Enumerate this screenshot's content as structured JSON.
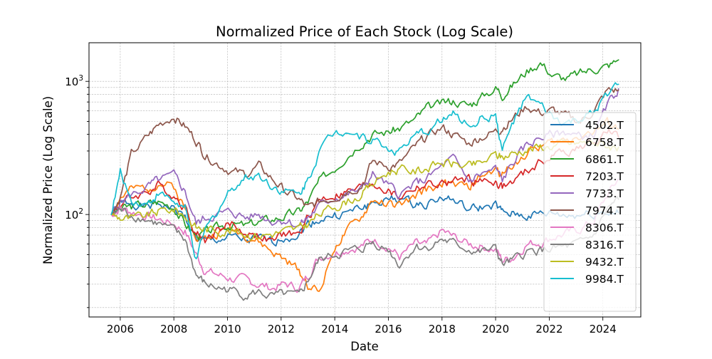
{
  "chart_data": {
    "type": "line",
    "title": "Normalized Price of Each Stock (Log Scale)",
    "xlabel": "Date",
    "ylabel": "Normalized Price (Log Scale)",
    "y_scale": "log",
    "ylim": [
      17,
      1950
    ],
    "xlim": [
      "2004-11-01",
      "2025-06-01"
    ],
    "x_ticks": [
      "2006",
      "2008",
      "2010",
      "2012",
      "2014",
      "2016",
      "2018",
      "2020",
      "2022",
      "2024"
    ],
    "y_ticks": [
      {
        "value": 100,
        "base": "10",
        "exp": "2"
      },
      {
        "value": 1000,
        "base": "10",
        "exp": "3"
      }
    ],
    "grid": true,
    "legend_position": "right",
    "x": [
      "2005-09",
      "2006-01",
      "2006-06",
      "2007-01",
      "2007-06",
      "2008-01",
      "2008-06",
      "2008-11",
      "2009-03",
      "2009-09",
      "2010-03",
      "2010-09",
      "2011-03",
      "2011-09",
      "2012-03",
      "2012-09",
      "2013-01",
      "2013-06",
      "2014-01",
      "2014-06",
      "2015-01",
      "2015-06",
      "2016-01",
      "2016-06",
      "2017-01",
      "2017-06",
      "2018-01",
      "2018-06",
      "2019-01",
      "2019-06",
      "2020-01",
      "2020-04",
      "2020-09",
      "2021-03",
      "2021-09",
      "2022-03",
      "2022-09",
      "2023-03",
      "2023-09",
      "2024-03",
      "2024-08"
    ],
    "series": [
      {
        "name": "4502.T",
        "color": "#1f77b4",
        "values": [
          100,
          118,
          125,
          112,
          122,
          110,
          95,
          66,
          62,
          65,
          67,
          63,
          65,
          62,
          68,
          72,
          85,
          92,
          98,
          102,
          112,
          122,
          128,
          132,
          118,
          123,
          135,
          128,
          108,
          112,
          118,
          102,
          100,
          98,
          100,
          102,
          98,
          100,
          102,
          105,
          103
        ]
      },
      {
        "name": "6758.T",
        "color": "#ff7f0e",
        "values": [
          100,
          132,
          152,
          158,
          172,
          162,
          110,
          72,
          65,
          72,
          80,
          70,
          62,
          52,
          45,
          38,
          30,
          26,
          58,
          72,
          95,
          128,
          120,
          115,
          135,
          155,
          170,
          165,
          160,
          190,
          215,
          200,
          245,
          285,
          330,
          345,
          365,
          400,
          420,
          480,
          440
        ]
      },
      {
        "name": "6861.T",
        "color": "#2ca02c",
        "values": [
          100,
          110,
          115,
          120,
          125,
          115,
          85,
          70,
          72,
          80,
          85,
          82,
          88,
          92,
          98,
          105,
          125,
          175,
          225,
          275,
          350,
          400,
          420,
          445,
          520,
          620,
          680,
          720,
          660,
          750,
          900,
          800,
          950,
          1200,
          1400,
          1100,
          1050,
          1150,
          1250,
          1300,
          1450
        ]
      },
      {
        "name": "7203.T",
        "color": "#d62728",
        "values": [
          100,
          120,
          135,
          148,
          165,
          140,
          115,
          72,
          65,
          78,
          85,
          72,
          70,
          62,
          72,
          70,
          95,
          130,
          140,
          145,
          160,
          175,
          150,
          135,
          160,
          165,
          170,
          175,
          185,
          175,
          178,
          160,
          175,
          210,
          245,
          280,
          300,
          320,
          340,
          420,
          380
        ]
      },
      {
        "name": "7733.T",
        "color": "#9467bd",
        "values": [
          100,
          125,
          140,
          160,
          180,
          195,
          150,
          85,
          95,
          100,
          105,
          95,
          100,
          90,
          92,
          82,
          95,
          115,
          135,
          140,
          155,
          200,
          165,
          140,
          170,
          185,
          230,
          260,
          180,
          200,
          220,
          180,
          250,
          330,
          380,
          400,
          420,
          380,
          400,
          650,
          880
        ]
      },
      {
        "name": "7974.T",
        "color": "#8c564b",
        "values": [
          100,
          135,
          280,
          380,
          470,
          550,
          460,
          360,
          280,
          240,
          210,
          200,
          230,
          185,
          150,
          130,
          110,
          125,
          135,
          150,
          165,
          250,
          230,
          240,
          320,
          380,
          450,
          400,
          340,
          380,
          420,
          450,
          530,
          650,
          580,
          600,
          540,
          500,
          600,
          850,
          860
        ]
      },
      {
        "name": "8306.T",
        "color": "#e377c2",
        "values": [
          100,
          112,
          105,
          98,
          92,
          85,
          75,
          50,
          38,
          35,
          33,
          32,
          30,
          28,
          30,
          28,
          35,
          48,
          52,
          55,
          58,
          65,
          58,
          48,
          60,
          58,
          75,
          68,
          60,
          58,
          55,
          45,
          48,
          60,
          62,
          68,
          72,
          78,
          90,
          140,
          185
        ]
      },
      {
        "name": "8316.T",
        "color": "#7f7f7f",
        "values": [
          100,
          108,
          100,
          92,
          85,
          75,
          65,
          35,
          30,
          28,
          27,
          25,
          26,
          24,
          25,
          24,
          32,
          45,
          50,
          52,
          55,
          62,
          55,
          42,
          58,
          56,
          65,
          60,
          55,
          52,
          55,
          42,
          45,
          52,
          54,
          55,
          57,
          60,
          70,
          110,
          130
        ]
      },
      {
        "name": "9432.T",
        "color": "#bcbd22",
        "values": [
          100,
          95,
          92,
          98,
          105,
          110,
          98,
          80,
          78,
          76,
          75,
          72,
          70,
          72,
          75,
          78,
          85,
          100,
          115,
          125,
          140,
          170,
          210,
          220,
          210,
          225,
          245,
          240,
          230,
          240,
          280,
          270,
          290,
          310,
          320,
          330,
          340,
          345,
          350,
          330,
          320
        ]
      },
      {
        "name": "9984.T",
        "color": "#17becf",
        "values": [
          100,
          205,
          130,
          120,
          145,
          125,
          110,
          45,
          75,
          110,
          160,
          190,
          200,
          165,
          150,
          140,
          185,
          300,
          420,
          440,
          380,
          370,
          310,
          300,
          380,
          420,
          520,
          560,
          470,
          520,
          560,
          300,
          500,
          750,
          650,
          520,
          480,
          520,
          560,
          800,
          950
        ]
      }
    ]
  }
}
